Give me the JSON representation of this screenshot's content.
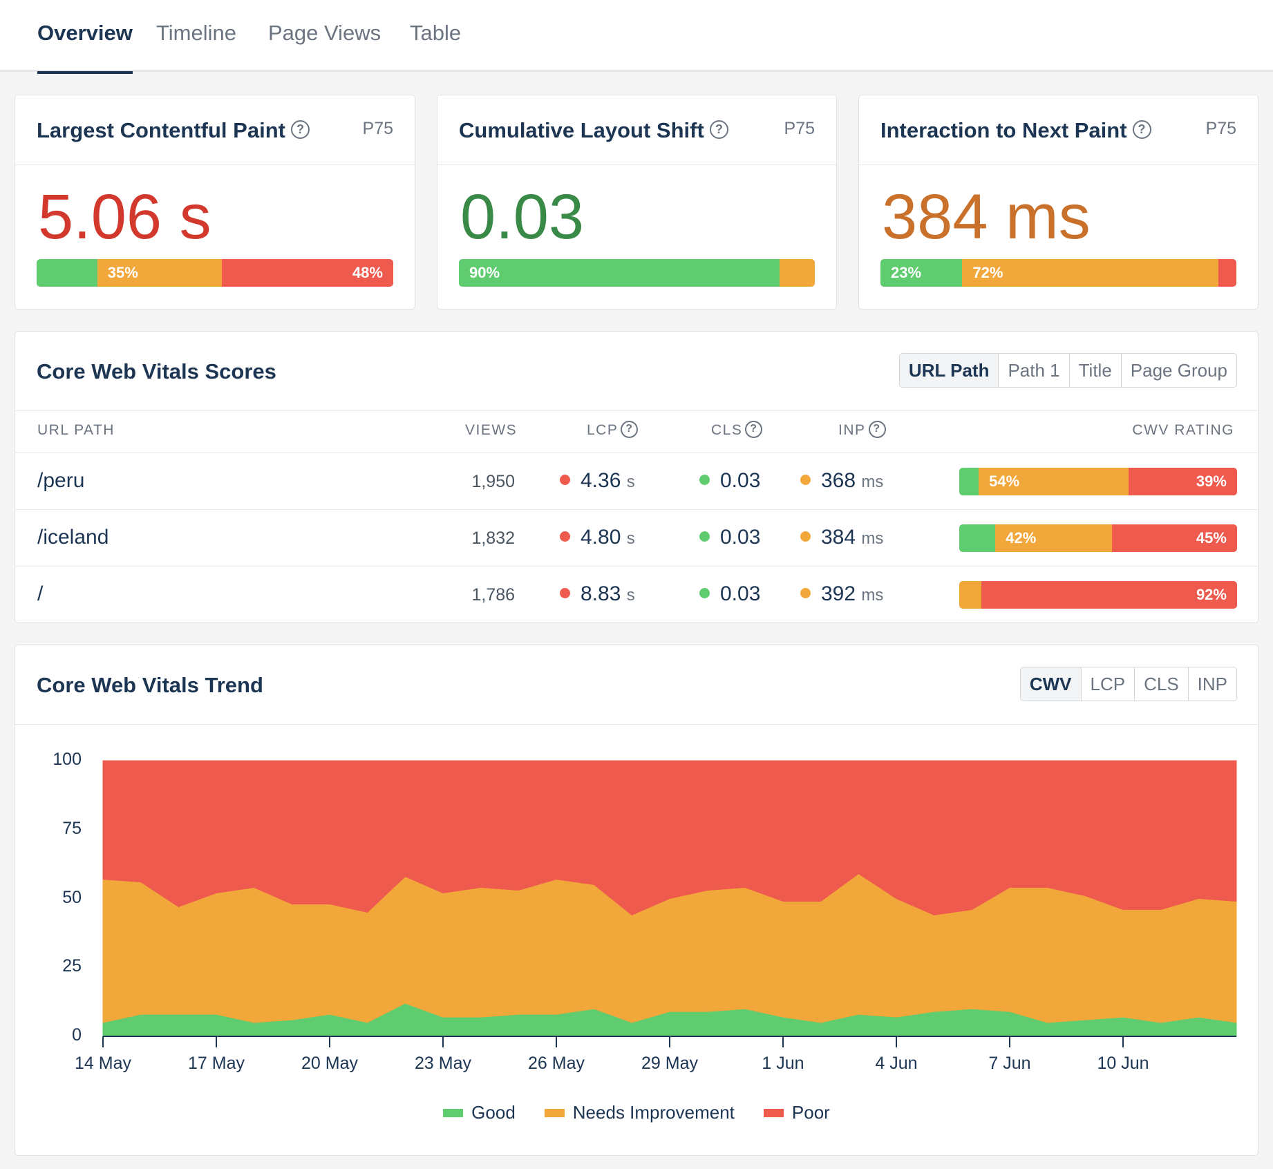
{
  "tabs": [
    {
      "label": "Overview",
      "active": true
    },
    {
      "label": "Timeline",
      "active": false
    },
    {
      "label": "Page Views",
      "active": false
    },
    {
      "label": "Table",
      "active": false
    }
  ],
  "metrics": [
    {
      "title": "Largest Contentful Paint",
      "percentile": "P75",
      "value": "5.06 s",
      "value_color": "#d2392c",
      "distribution": {
        "good": 17,
        "needs_improvement": 35,
        "poor": 48
      },
      "labels": {
        "good": "",
        "needs_improvement": "35%",
        "poor": "48%"
      }
    },
    {
      "title": "Cumulative Layout Shift",
      "percentile": "P75",
      "value": "0.03",
      "value_color": "#3a8a47",
      "distribution": {
        "good": 90,
        "needs_improvement": 10,
        "poor": 0
      },
      "labels": {
        "good": "90%",
        "needs_improvement": "",
        "poor": ""
      }
    },
    {
      "title": "Interaction to Next Paint",
      "percentile": "P75",
      "value": "384 ms",
      "value_color": "#c9702a",
      "distribution": {
        "good": 23,
        "needs_improvement": 72,
        "poor": 5
      },
      "labels": {
        "good": "23%",
        "needs_improvement": "72%",
        "poor": ""
      }
    }
  ],
  "scores": {
    "title": "Core Web Vitals Scores",
    "group_by": [
      "URL Path",
      "Path 1",
      "Title",
      "Page Group"
    ],
    "group_by_active": "URL Path",
    "columns": {
      "path": "URL PATH",
      "views": "VIEWS",
      "lcp": "LCP",
      "cls": "CLS",
      "inp": "INP",
      "rating": "CWV RATING"
    },
    "rows": [
      {
        "path": "/peru",
        "views": "1,950",
        "lcp": "4.36",
        "lcp_unit": "s",
        "lcp_status": "poor",
        "cls": "0.03",
        "cls_status": "good",
        "inp": "368",
        "inp_unit": "ms",
        "inp_status": "ni",
        "rating": {
          "good": 7,
          "needs_improvement": 54,
          "poor": 39
        },
        "rating_labels": {
          "good": "",
          "needs_improvement": "54%",
          "poor": "39%"
        }
      },
      {
        "path": "/iceland",
        "views": "1,832",
        "lcp": "4.80",
        "lcp_unit": "s",
        "lcp_status": "poor",
        "cls": "0.03",
        "cls_status": "good",
        "inp": "384",
        "inp_unit": "ms",
        "inp_status": "ni",
        "rating": {
          "good": 13,
          "needs_improvement": 42,
          "poor": 45
        },
        "rating_labels": {
          "good": "",
          "needs_improvement": "42%",
          "poor": "45%"
        }
      },
      {
        "path": "/",
        "views": "1,786",
        "lcp": "8.83",
        "lcp_unit": "s",
        "lcp_status": "poor",
        "cls": "0.03",
        "cls_status": "good",
        "inp": "392",
        "inp_unit": "ms",
        "inp_status": "ni",
        "rating": {
          "good": 0,
          "needs_improvement": 8,
          "poor": 92
        },
        "rating_labels": {
          "good": "",
          "needs_improvement": "",
          "poor": "92%"
        }
      }
    ]
  },
  "trend": {
    "title": "Core Web Vitals Trend",
    "metric_tabs": [
      "CWV",
      "LCP",
      "CLS",
      "INP"
    ],
    "metric_active": "CWV"
  },
  "colors": {
    "good": "#5fcc6f",
    "needs_improvement": "#f2a73b",
    "poor": "#ee5b4e",
    "header_text": "#1c3553"
  },
  "chart_data": {
    "type": "area",
    "stacked": true,
    "x": [
      "14 May",
      "15 May",
      "16 May",
      "17 May",
      "18 May",
      "19 May",
      "20 May",
      "21 May",
      "22 May",
      "23 May",
      "24 May",
      "25 May",
      "26 May",
      "27 May",
      "28 May",
      "29 May",
      "30 May",
      "31 May",
      "1 Jun",
      "2 Jun",
      "3 Jun",
      "4 Jun",
      "5 Jun",
      "6 Jun",
      "7 Jun",
      "8 Jun",
      "9 Jun",
      "10 Jun",
      "11 Jun",
      "12 Jun",
      "13 Jun"
    ],
    "xticks": [
      "14 May",
      "17 May",
      "20 May",
      "23 May",
      "26 May",
      "29 May",
      "1 Jun",
      "4 Jun",
      "7 Jun",
      "10 Jun"
    ],
    "ylim": [
      0,
      100
    ],
    "yticks": [
      0,
      25,
      50,
      75,
      100
    ],
    "series": [
      {
        "name": "Good",
        "values": [
          5,
          8,
          8,
          8,
          5,
          6,
          8,
          5,
          12,
          7,
          7,
          8,
          8,
          10,
          5,
          9,
          9,
          10,
          7,
          5,
          8,
          7,
          9,
          10,
          9,
          5,
          6,
          7,
          5,
          7,
          5
        ]
      },
      {
        "name": "Needs Improvement",
        "values": [
          52,
          48,
          39,
          44,
          49,
          42,
          40,
          40,
          46,
          45,
          47,
          45,
          49,
          45,
          39,
          41,
          44,
          44,
          42,
          44,
          51,
          43,
          35,
          36,
          45,
          49,
          45,
          39,
          41,
          43,
          44
        ]
      },
      {
        "name": "Poor",
        "values": [
          43,
          44,
          53,
          48,
          46,
          52,
          52,
          55,
          42,
          48,
          46,
          47,
          43,
          45,
          56,
          50,
          47,
          46,
          51,
          51,
          41,
          50,
          56,
          54,
          46,
          46,
          49,
          54,
          54,
          50,
          51
        ]
      }
    ],
    "legend": [
      "Good",
      "Needs Improvement",
      "Poor"
    ],
    "legend_position": "bottom"
  }
}
